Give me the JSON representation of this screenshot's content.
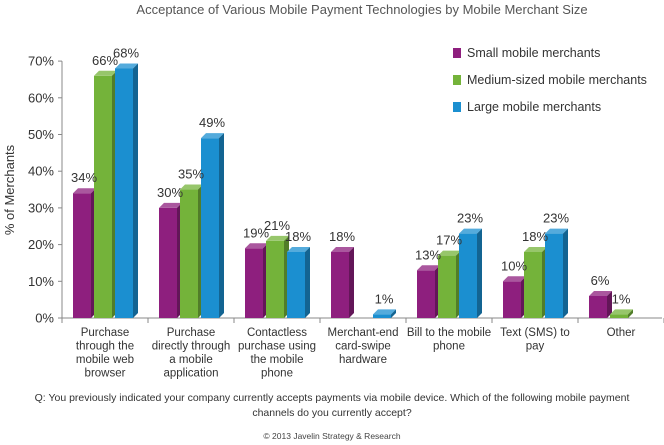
{
  "chart_data": {
    "type": "bar",
    "title": "Acceptance of Various Mobile Payment Technologies by Mobile Merchant Size",
    "ylabel": "% of Merchants",
    "xlabel": "",
    "ylim": [
      0,
      70
    ],
    "yticks": [
      "0%",
      "10%",
      "20%",
      "30%",
      "40%",
      "50%",
      "60%",
      "70%"
    ],
    "grid": false,
    "legend_position": "top-right",
    "categories": [
      [
        "Purchase",
        "through the",
        "mobile web",
        "browser"
      ],
      [
        "Purchase",
        "directly through",
        "a mobile",
        "application"
      ],
      [
        "Contactless",
        "purchase using",
        "the mobile",
        "phone"
      ],
      [
        "Merchant-end",
        "card-swipe",
        "hardware"
      ],
      [
        "Bill to the mobile",
        "phone"
      ],
      [
        "Text (SMS) to",
        "pay"
      ],
      [
        "Other"
      ]
    ],
    "series": [
      {
        "name": "Small mobile merchants",
        "color": "#8e1f7e",
        "values": [
          34,
          30,
          19,
          18,
          13,
          10,
          6
        ],
        "labels": [
          "34%",
          "30%",
          "19%",
          "18%",
          "13%",
          "10%",
          "6%"
        ]
      },
      {
        "name": "Medium-sized mobile merchants",
        "color": "#74b33a",
        "values": [
          66,
          35,
          21,
          null,
          17,
          18,
          1
        ],
        "labels": [
          "66%",
          "35%",
          "21%",
          null,
          "17%",
          "18%",
          "1%"
        ]
      },
      {
        "name": "Large mobile merchants",
        "color": "#1b8fd0",
        "values": [
          68,
          49,
          18,
          1,
          23,
          23,
          null
        ],
        "labels": [
          "68%",
          "49%",
          "18%",
          "1%",
          "23%",
          "23%",
          null
        ]
      }
    ]
  },
  "footer": {
    "question": "Q: You previously indicated your company currently accepts payments via mobile device. Which of the following mobile payment channels do you currently accept?",
    "copyright": "© 2013 Javelin Strategy & Research"
  }
}
